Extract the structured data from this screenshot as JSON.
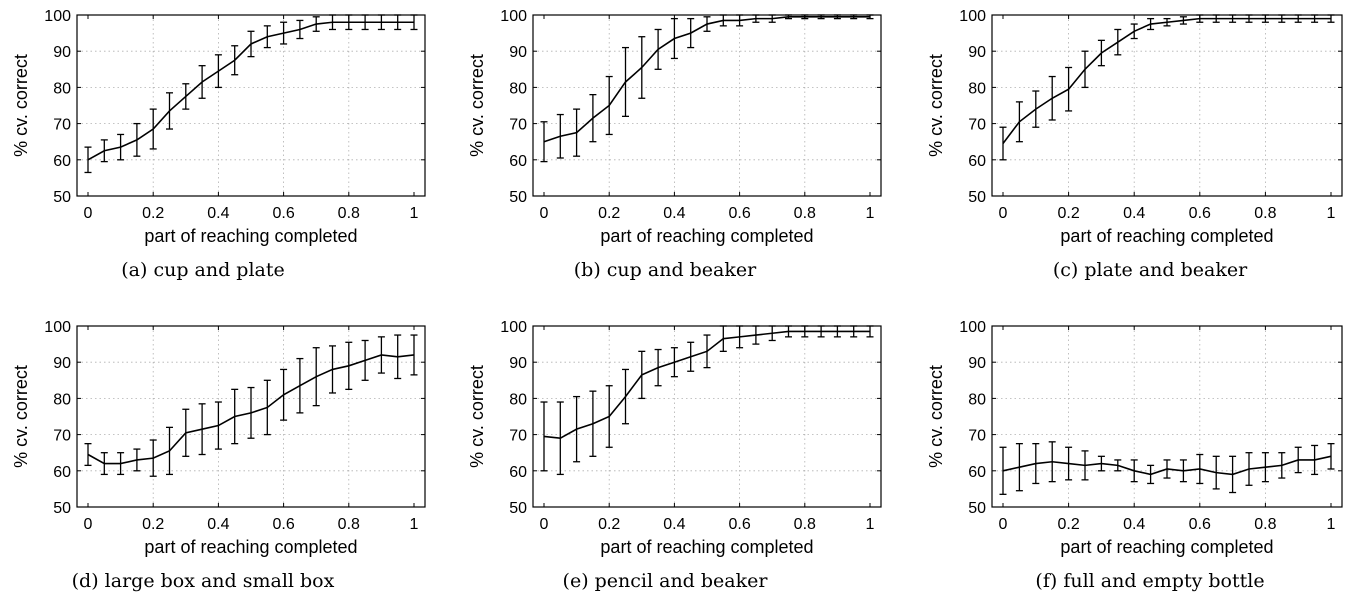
{
  "chart_data": [
    {
      "type": "line",
      "caption": "(a) cup and plate",
      "xlabel": "part of reaching completed",
      "ylabel": "% cv. correct",
      "xlim": [
        0,
        1
      ],
      "ylim": [
        50,
        100
      ],
      "xticks": [
        "0",
        "0.2",
        "0.4",
        "0.6",
        "0.8",
        "1"
      ],
      "yticks": [
        "50",
        "60",
        "70",
        "80",
        "90",
        "100"
      ],
      "grid": true,
      "x": [
        0,
        0.05,
        0.1,
        0.15,
        0.2,
        0.25,
        0.3,
        0.35,
        0.4,
        0.45,
        0.5,
        0.55,
        0.6,
        0.65,
        0.7,
        0.75,
        0.8,
        0.85,
        0.9,
        0.95,
        1
      ],
      "y": [
        60,
        62.5,
        63.5,
        65.5,
        68.5,
        73.5,
        77.5,
        81.5,
        84.5,
        87.5,
        92,
        94,
        95,
        96,
        97.5,
        98,
        98,
        98,
        98,
        98,
        98
      ],
      "err": [
        3.5,
        3,
        3.5,
        4.5,
        5.5,
        5,
        3.5,
        4.5,
        4.5,
        4,
        3.5,
        3,
        3,
        2.5,
        2,
        2,
        2,
        2,
        2,
        2,
        2
      ]
    },
    {
      "type": "line",
      "caption": "(b) cup and beaker",
      "xlabel": "part of reaching completed",
      "ylabel": "% cv. correct",
      "xlim": [
        0,
        1
      ],
      "ylim": [
        50,
        100
      ],
      "xticks": [
        "0",
        "0.2",
        "0.4",
        "0.6",
        "0.8",
        "1"
      ],
      "yticks": [
        "50",
        "60",
        "70",
        "80",
        "90",
        "100"
      ],
      "grid": true,
      "x": [
        0,
        0.05,
        0.1,
        0.15,
        0.2,
        0.25,
        0.3,
        0.35,
        0.4,
        0.45,
        0.5,
        0.55,
        0.6,
        0.65,
        0.7,
        0.75,
        0.8,
        0.85,
        0.9,
        0.95,
        1
      ],
      "y": [
        65,
        66.5,
        67.5,
        71.5,
        75,
        81.5,
        85.5,
        90.5,
        93.5,
        95,
        97.5,
        98.5,
        98.5,
        99,
        99,
        99.5,
        99.5,
        99.5,
        99.5,
        99.5,
        99.5
      ],
      "err": [
        5.5,
        6,
        6.5,
        6.5,
        8,
        9.5,
        8.5,
        5.5,
        5.5,
        4,
        2,
        1.5,
        1.5,
        1,
        1,
        0.5,
        0.5,
        0.5,
        0.5,
        0.5,
        0.5
      ]
    },
    {
      "type": "line",
      "caption": "(c) plate and beaker",
      "xlabel": "part of reaching completed",
      "ylabel": "% cv. correct",
      "xlim": [
        0,
        1
      ],
      "ylim": [
        50,
        100
      ],
      "xticks": [
        "0",
        "0.2",
        "0.4",
        "0.6",
        "0.8",
        "1"
      ],
      "yticks": [
        "50",
        "60",
        "70",
        "80",
        "90",
        "100"
      ],
      "grid": true,
      "x": [
        0,
        0.05,
        0.1,
        0.15,
        0.2,
        0.25,
        0.3,
        0.35,
        0.4,
        0.45,
        0.5,
        0.55,
        0.6,
        0.65,
        0.7,
        0.75,
        0.8,
        0.85,
        0.9,
        0.95,
        1
      ],
      "y": [
        64.5,
        70.5,
        74,
        77,
        79.5,
        85,
        89.5,
        92.5,
        95.5,
        97.5,
        98,
        98.5,
        99,
        99,
        99,
        99,
        99,
        99,
        99,
        99,
        99
      ],
      "err": [
        4.5,
        5.5,
        5,
        6,
        6,
        5,
        3.5,
        3.5,
        2,
        1.5,
        1,
        1,
        1,
        1,
        1,
        1,
        1,
        1,
        1,
        1,
        1
      ]
    },
    {
      "type": "line",
      "caption": "(d) large box and small box",
      "xlabel": "part of reaching completed",
      "ylabel": "% cv. correct",
      "xlim": [
        0,
        1
      ],
      "ylim": [
        50,
        100
      ],
      "xticks": [
        "0",
        "0.2",
        "0.4",
        "0.6",
        "0.8",
        "1"
      ],
      "yticks": [
        "50",
        "60",
        "70",
        "80",
        "90",
        "100"
      ],
      "grid": true,
      "x": [
        0,
        0.05,
        0.1,
        0.15,
        0.2,
        0.25,
        0.3,
        0.35,
        0.4,
        0.45,
        0.5,
        0.55,
        0.6,
        0.65,
        0.7,
        0.75,
        0.8,
        0.85,
        0.9,
        0.95,
        1
      ],
      "y": [
        64.5,
        62,
        62,
        63,
        63.5,
        65.5,
        70.5,
        71.5,
        72.5,
        75,
        76,
        77.5,
        81,
        83.5,
        86,
        88,
        89,
        90.5,
        92,
        91.5,
        92
      ],
      "err": [
        3,
        3,
        3,
        3,
        5,
        6.5,
        6.5,
        7,
        6.5,
        7.5,
        7,
        7.5,
        7,
        7.5,
        8,
        6.5,
        6.5,
        5.5,
        5,
        6,
        5.5
      ]
    },
    {
      "type": "line",
      "caption": "(e) pencil and beaker",
      "xlabel": "part of reaching completed",
      "ylabel": "% cv. correct",
      "xlim": [
        0,
        1
      ],
      "ylim": [
        50,
        100
      ],
      "xticks": [
        "0",
        "0.2",
        "0.4",
        "0.6",
        "0.8",
        "1"
      ],
      "yticks": [
        "50",
        "60",
        "70",
        "80",
        "90",
        "100"
      ],
      "grid": true,
      "x": [
        0,
        0.05,
        0.1,
        0.15,
        0.2,
        0.25,
        0.3,
        0.35,
        0.4,
        0.45,
        0.5,
        0.55,
        0.6,
        0.65,
        0.7,
        0.75,
        0.8,
        0.85,
        0.9,
        0.95,
        1
      ],
      "y": [
        69.5,
        69,
        71.5,
        73,
        75,
        80.5,
        86.5,
        88.5,
        90,
        91.5,
        93,
        96.5,
        97,
        97.5,
        98,
        98.5,
        98.5,
        98.5,
        98.5,
        98.5,
        98.5
      ],
      "err": [
        9.5,
        10,
        9,
        9,
        8.5,
        7.5,
        6.5,
        5,
        4,
        4,
        4.5,
        3.5,
        3,
        2.5,
        2,
        1.5,
        1.5,
        1.5,
        1.5,
        1.5,
        1.5
      ]
    },
    {
      "type": "line",
      "caption": "(f) full and empty bottle",
      "xlabel": "part of reaching completed",
      "ylabel": "% cv. correct",
      "xlim": [
        0,
        1
      ],
      "ylim": [
        50,
        100
      ],
      "xticks": [
        "0",
        "0.2",
        "0.4",
        "0.6",
        "0.8",
        "1"
      ],
      "yticks": [
        "50",
        "60",
        "70",
        "80",
        "90",
        "100"
      ],
      "grid": true,
      "x": [
        0,
        0.05,
        0.1,
        0.15,
        0.2,
        0.25,
        0.3,
        0.35,
        0.4,
        0.45,
        0.5,
        0.55,
        0.6,
        0.65,
        0.7,
        0.75,
        0.8,
        0.85,
        0.9,
        0.95,
        1
      ],
      "y": [
        60,
        61,
        62,
        62.5,
        62,
        61.5,
        62,
        61.5,
        60,
        59,
        60.5,
        60,
        60.5,
        59.5,
        59,
        60.5,
        61,
        61.5,
        63,
        63,
        64
      ],
      "err": [
        6.5,
        6.5,
        5.5,
        5.5,
        4.5,
        4,
        2,
        1.5,
        3,
        2.5,
        2.5,
        3,
        4,
        4.5,
        5,
        4.5,
        4,
        3.5,
        3.5,
        4,
        3.5
      ]
    }
  ]
}
